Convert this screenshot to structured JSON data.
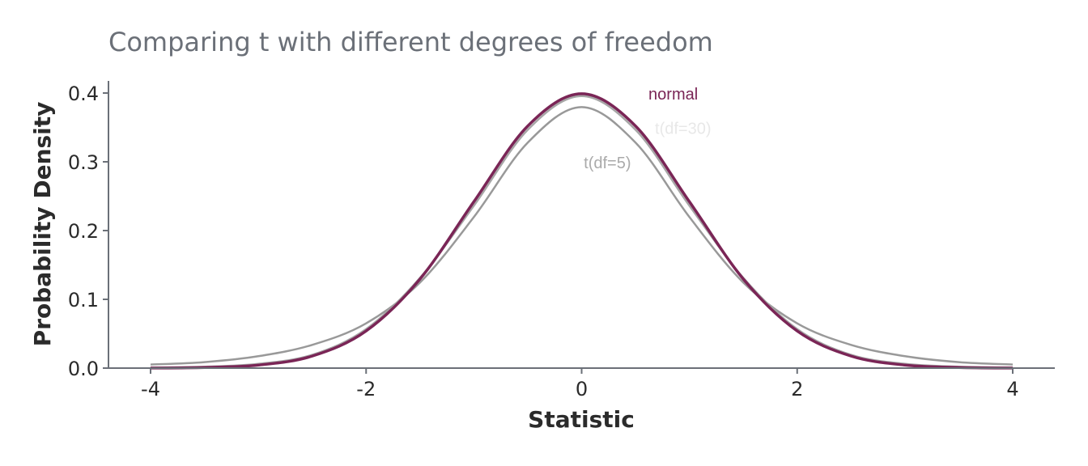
{
  "chart_data": {
    "type": "line",
    "title": "Comparing t with different degrees of freedom",
    "xlabel": "Statistic",
    "ylabel": "Probability Density",
    "xlim": [
      -4,
      4
    ],
    "ylim": [
      0,
      0.4
    ],
    "x_ticks": [
      -4,
      -2,
      0,
      2,
      4
    ],
    "y_ticks": [
      0.0,
      0.1,
      0.2,
      0.3,
      0.4
    ],
    "x_tick_labels": [
      "-4",
      "-2",
      "0",
      "2",
      "4"
    ],
    "y_tick_labels": [
      "0.0",
      "0.1",
      "0.2",
      "0.3",
      "0.4"
    ],
    "grid": false,
    "legend": "none",
    "series": [
      {
        "name": "t(df=5)",
        "color": "#999999",
        "x": [
          -4,
          -3.5,
          -3,
          -2.5,
          -2,
          -1.5,
          -1,
          -0.5,
          0,
          0.5,
          1,
          1.5,
          2,
          2.5,
          3,
          3.5,
          4
        ],
        "values": [
          0.0051,
          0.0087,
          0.0173,
          0.0338,
          0.0651,
          0.1245,
          0.2197,
          0.3279,
          0.3796,
          0.3279,
          0.2197,
          0.1245,
          0.0651,
          0.0338,
          0.0173,
          0.0087,
          0.0051
        ]
      },
      {
        "name": "t(df=30)",
        "color": "#a6a6a6",
        "x": [
          -4,
          -3.5,
          -3,
          -2.5,
          -2,
          -1.5,
          -1,
          -0.5,
          0,
          0.5,
          1,
          1.5,
          2,
          2.5,
          3,
          3.5,
          4
        ],
        "values": [
          0.0007,
          0.002,
          0.0062,
          0.0193,
          0.0567,
          0.1312,
          0.2362,
          0.3466,
          0.3956,
          0.3466,
          0.2362,
          0.1312,
          0.0567,
          0.0193,
          0.0062,
          0.002,
          0.0007
        ]
      },
      {
        "name": "normal",
        "color": "#7a2556",
        "x": [
          -4,
          -3.5,
          -3,
          -2.5,
          -2,
          -1.5,
          -1,
          -0.5,
          0,
          0.5,
          1,
          1.5,
          2,
          2.5,
          3,
          3.5,
          4
        ],
        "values": [
          0.0001,
          0.0009,
          0.0044,
          0.0175,
          0.054,
          0.1295,
          0.242,
          0.3521,
          0.3989,
          0.3521,
          0.242,
          0.1295,
          0.054,
          0.0175,
          0.0044,
          0.0009,
          0.0001
        ]
      }
    ],
    "annotations": [
      {
        "text": "normal",
        "x": 0.62,
        "y": 0.4,
        "color": "#7a2556"
      },
      {
        "text": "t(df=30)",
        "x": 0.68,
        "y": 0.35,
        "color": "#e8e8e8"
      },
      {
        "text": "t(df=5)",
        "x": 0.02,
        "y": 0.3,
        "color": "#aaaaaa"
      }
    ],
    "axis_color": "#6b7078"
  }
}
